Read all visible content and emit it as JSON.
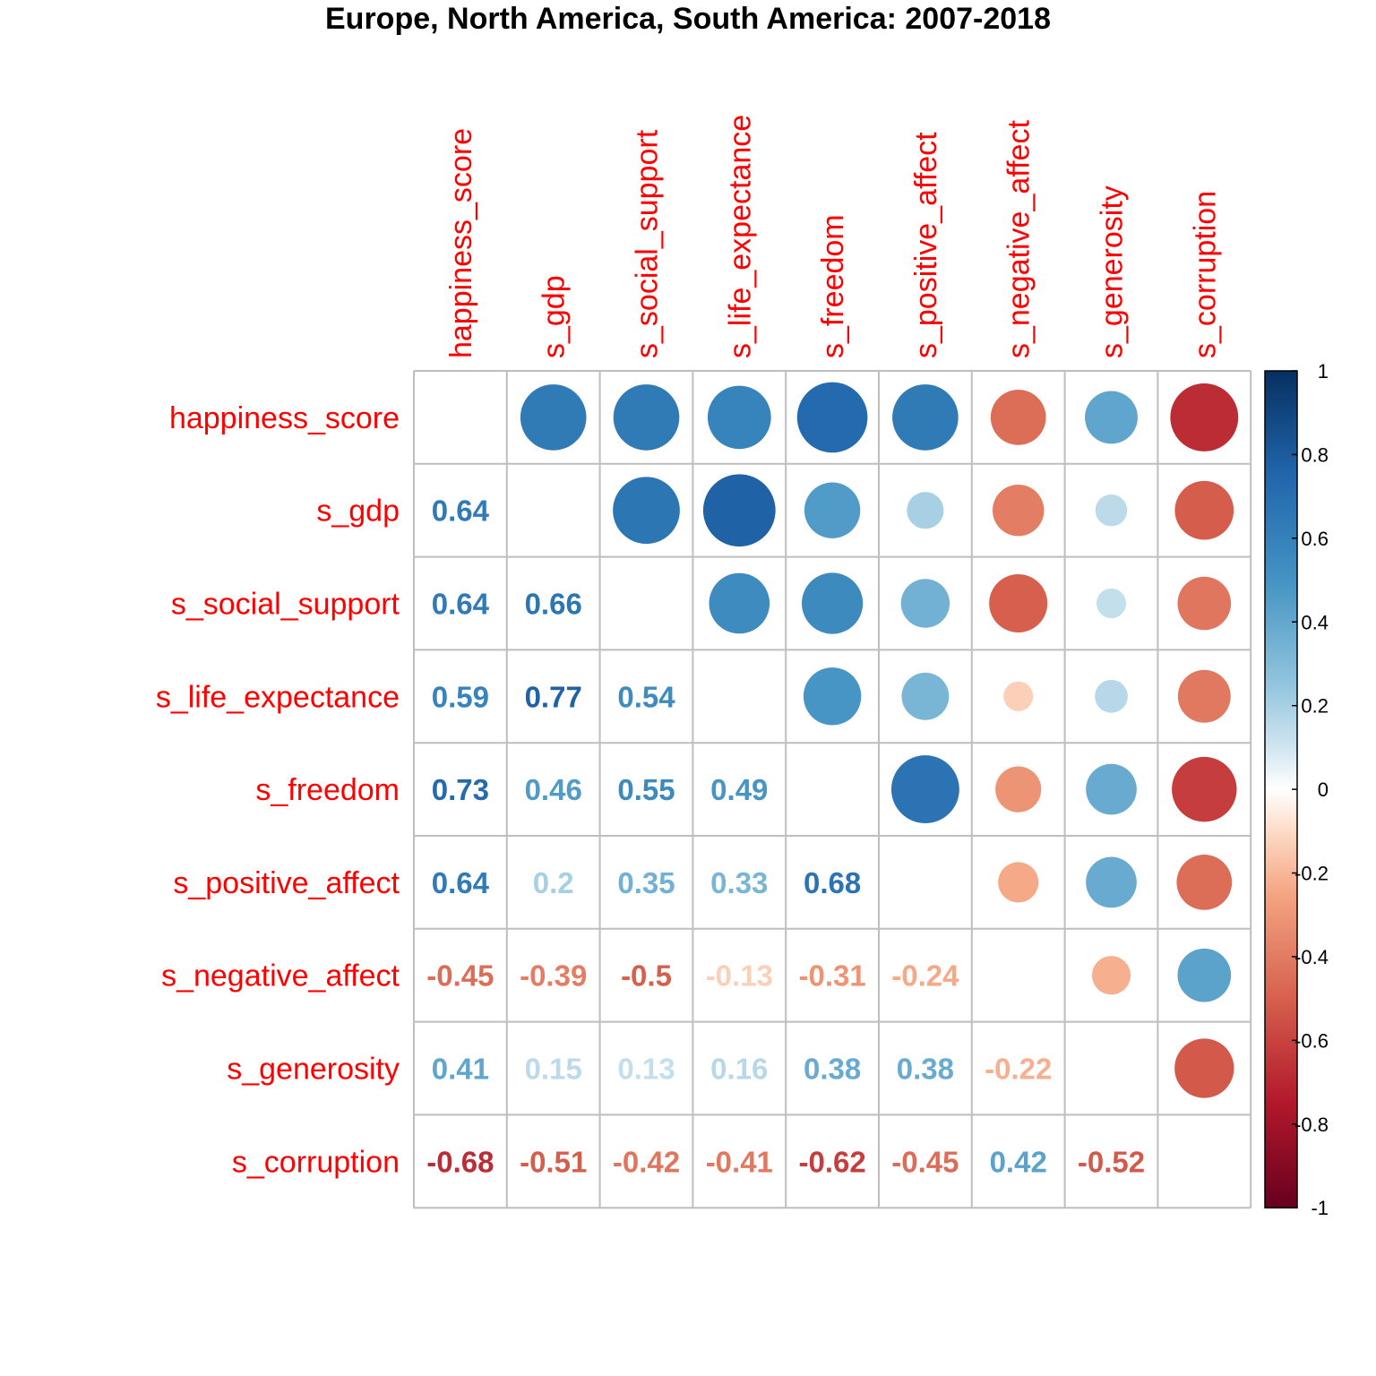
{
  "chart_data": {
    "type": "heatmap",
    "subtype": "correlation-matrix",
    "title": "Europe, North America, South America: 2007-2018",
    "variables": [
      "happiness_score",
      "s_gdp",
      "s_social_support",
      "s_life_expectance",
      "s_freedom",
      "s_positive_affect",
      "s_negative_affect",
      "s_generosity",
      "s_corruption"
    ],
    "matrix": [
      [
        1,
        0.64,
        0.64,
        0.59,
        0.73,
        0.64,
        -0.45,
        0.41,
        -0.68
      ],
      [
        0.64,
        1,
        0.66,
        0.77,
        0.46,
        0.2,
        -0.39,
        0.15,
        -0.51
      ],
      [
        0.64,
        0.66,
        1,
        0.54,
        0.55,
        0.35,
        -0.5,
        0.13,
        -0.42
      ],
      [
        0.59,
        0.77,
        0.54,
        1,
        0.49,
        0.33,
        -0.13,
        0.16,
        -0.41
      ],
      [
        0.73,
        0.46,
        0.55,
        0.49,
        1,
        0.68,
        -0.31,
        0.38,
        -0.62
      ],
      [
        0.64,
        0.2,
        0.35,
        0.33,
        0.68,
        1,
        -0.24,
        0.38,
        -0.45
      ],
      [
        -0.45,
        -0.39,
        -0.5,
        -0.13,
        -0.31,
        -0.24,
        1,
        -0.22,
        0.42
      ],
      [
        0.41,
        0.15,
        0.13,
        0.16,
        0.38,
        0.38,
        -0.22,
        1,
        -0.52
      ],
      [
        -0.68,
        -0.51,
        -0.42,
        -0.41,
        -0.62,
        -0.45,
        0.42,
        -0.52,
        1
      ]
    ],
    "upper_triangle": "circle",
    "lower_triangle": "number",
    "diagonal": "blank",
    "label_color": "#ff0000",
    "color_scale": {
      "min": -1,
      "max": 1,
      "ticks": [
        "1",
        "0.8",
        "0.6",
        "0.4",
        "0.2",
        "0",
        "-0.2",
        "-0.4",
        "-0.6",
        "-0.8",
        "-1"
      ],
      "stops": [
        {
          "value": -1,
          "color": "#67001f"
        },
        {
          "value": -0.75,
          "color": "#b2182b"
        },
        {
          "value": -0.5,
          "color": "#d6604d"
        },
        {
          "value": -0.25,
          "color": "#f4a582"
        },
        {
          "value": -0.1,
          "color": "#fddbc7"
        },
        {
          "value": 0,
          "color": "#ffffff"
        },
        {
          "value": 0.1,
          "color": "#d1e5f0"
        },
        {
          "value": 0.25,
          "color": "#92c5de"
        },
        {
          "value": 0.5,
          "color": "#4393c3"
        },
        {
          "value": 0.75,
          "color": "#2166ac"
        },
        {
          "value": 1,
          "color": "#053061"
        }
      ]
    },
    "legend_position": "right",
    "grid": true,
    "grid_color": "#bebebe"
  }
}
